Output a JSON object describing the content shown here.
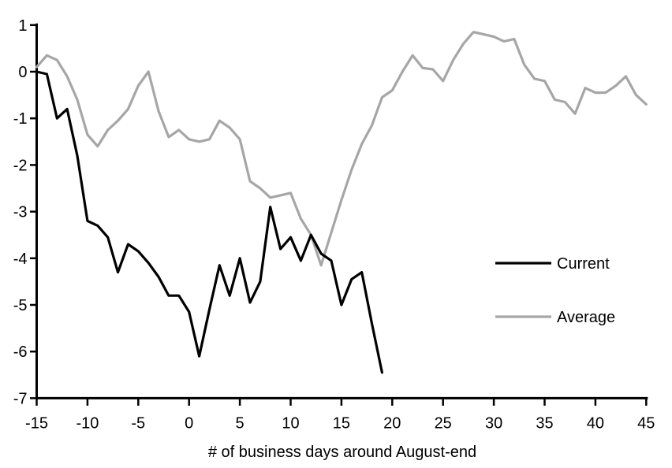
{
  "chart_data": {
    "type": "line",
    "title": "",
    "xlabel": "# of business days around August-end",
    "ylabel": "",
    "x_range": [
      -15,
      45
    ],
    "y_range": [
      -7,
      1
    ],
    "x_ticks": [
      -15,
      -10,
      -5,
      0,
      5,
      10,
      15,
      20,
      25,
      30,
      35,
      40,
      45
    ],
    "y_ticks": [
      1,
      0,
      -1,
      -2,
      -3,
      -4,
      -5,
      -6,
      -7
    ],
    "grid": false,
    "legend_position": "right-middle",
    "axis_color": "#000000",
    "series": [
      {
        "name": "Current",
        "color": "#000000",
        "x_start": -15,
        "x_step": 1,
        "values": [
          0,
          -0.05,
          -1.0,
          -0.8,
          -1.8,
          -3.2,
          -3.3,
          -3.55,
          -4.3,
          -3.7,
          -3.85,
          -4.1,
          -4.4,
          -4.8,
          -4.8,
          -5.15,
          -6.1,
          -5.1,
          -4.15,
          -4.8,
          -4.0,
          -4.95,
          -4.5,
          -2.9,
          -3.8,
          -3.55,
          -4.05,
          -3.5,
          -3.9,
          -4.05,
          -5.0,
          -4.45,
          -4.3,
          -5.4,
          -6.45
        ]
      },
      {
        "name": "Average",
        "color": "#a6a6a6",
        "x_start": -15,
        "x_step": 1,
        "values": [
          0.1,
          0.35,
          0.25,
          -0.1,
          -0.6,
          -1.35,
          -1.6,
          -1.25,
          -1.05,
          -0.8,
          -0.3,
          0.0,
          -0.85,
          -1.4,
          -1.25,
          -1.45,
          -1.5,
          -1.45,
          -1.05,
          -1.2,
          -1.45,
          -2.35,
          -2.5,
          -2.7,
          -2.65,
          -2.6,
          -3.15,
          -3.5,
          -4.15,
          -3.45,
          -2.75,
          -2.1,
          -1.55,
          -1.15,
          -0.55,
          -0.4,
          0.0,
          0.35,
          0.08,
          0.05,
          -0.2,
          0.25,
          0.6,
          0.85,
          0.8,
          0.75,
          0.65,
          0.7,
          0.15,
          -0.15,
          -0.2,
          -0.6,
          -0.65,
          -0.9,
          -0.35,
          -0.45,
          -0.45,
          -0.3,
          -0.1,
          -0.5,
          -0.7
        ]
      }
    ]
  }
}
